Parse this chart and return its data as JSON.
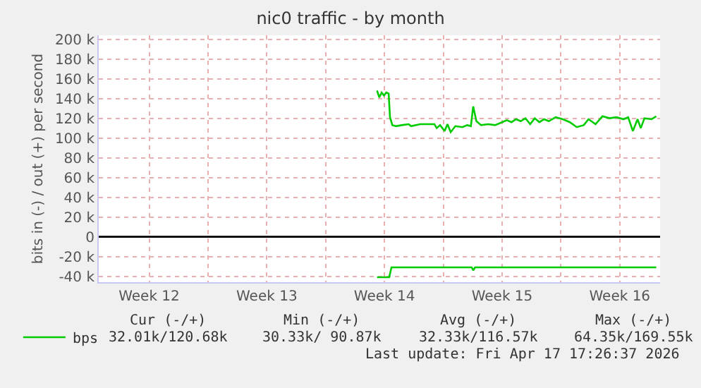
{
  "chart_data": {
    "type": "line",
    "title": "nic0 traffic - by month",
    "ylabel": "bits in (-) / out (+) per second",
    "xlim": [
      "2026-03-15T12:00",
      "2026-04-17T21:36"
    ],
    "ylim": [
      -46000,
      204000
    ],
    "xticks": [
      {
        "value": "2026-03-18T12:00",
        "label": "Week 12"
      },
      {
        "value": "2026-03-22",
        "label": null
      },
      {
        "value": "2026-03-25T12:00",
        "label": "Week 13"
      },
      {
        "value": "2026-03-29",
        "label": null
      },
      {
        "value": "2026-04-01T12:00",
        "label": "Week 14"
      },
      {
        "value": "2026-04-05",
        "label": null
      },
      {
        "value": "2026-04-08T12:00",
        "label": "Week 15"
      },
      {
        "value": "2026-04-12",
        "label": null
      },
      {
        "value": "2026-04-15T12:00",
        "label": "Week 16"
      }
    ],
    "yticks": [
      {
        "value": -40000,
        "label": "-40 k"
      },
      {
        "value": -20000,
        "label": "-20 k"
      },
      0,
      {
        "value": 20000,
        "label": "20 k"
      },
      {
        "value": 40000,
        "label": "40 k"
      },
      {
        "value": 60000,
        "label": "60 k"
      },
      {
        "value": 80000,
        "label": "80 k"
      },
      {
        "value": 100000,
        "label": "100 k"
      },
      {
        "value": 120000,
        "label": "120 k"
      },
      {
        "value": 140000,
        "label": "140 k"
      },
      {
        "value": 160000,
        "label": "160 k"
      },
      {
        "value": 180000,
        "label": "180 k"
      },
      {
        "value": 200000,
        "label": "200 k"
      }
    ],
    "grid": true,
    "legend": "bottom left",
    "marker": "none",
    "line_style": "solid",
    "ref_lines": [
      {
        "axis": "y",
        "value": 0,
        "label": null,
        "color": "#000000"
      }
    ],
    "series": [
      {
        "name": "bps",
        "color": "#00cc00",
        "x": [
          "2026-04-01T01:24",
          "2026-04-01T04:36",
          "2026-04-01T07:55",
          "2026-04-01T11:17",
          "2026-04-01T14:38",
          "2026-04-01T18:00",
          "2026-04-01T19:55",
          "2026-04-01T23:17",
          "2026-04-02T04:34",
          "2026-04-02T12:43",
          "2026-04-02T22:34",
          "2026-04-03T01:55",
          "2026-04-03T15:22",
          "2026-04-04T11:17",
          "2026-04-04T14:38",
          "2026-04-04T19:26",
          "2026-04-05T01:55",
          "2026-04-05T06:00",
          "2026-04-05T10:34",
          "2026-04-05T17:17",
          "2026-04-06T03:22",
          "2026-04-06T10:05",
          "2026-04-06T15:22",
          "2026-04-06T18:43",
          "2026-04-06T23:17",
          "2026-04-07T06:00",
          "2026-04-07T16:05",
          "2026-04-08T01:55",
          "2026-04-08T12:00",
          "2026-04-08T18:43",
          "2026-04-09T01:26",
          "2026-04-09T07:55",
          "2026-04-09T14:38",
          "2026-04-09T21:22",
          "2026-04-10T04:05",
          "2026-04-10T10:34",
          "2026-04-10T17:17",
          "2026-04-11T00:00",
          "2026-04-11T06:43",
          "2026-04-11T16:34",
          "2026-04-12T02:38",
          "2026-04-12T12:43",
          "2026-04-12T22:34",
          "2026-04-13T08:38",
          "2026-04-13T15:22",
          "2026-04-14T01:26",
          "2026-04-14T11:17",
          "2026-04-14T21:22",
          "2026-04-15T07:26",
          "2026-04-15T17:17",
          "2026-04-16T00:00",
          "2026-04-16T06:43",
          "2026-04-16T13:26",
          "2026-04-16T18:00",
          "2026-04-16T23:17",
          "2026-04-17T09:22",
          "2026-04-17T16:05"
        ],
        "values": [
          148000,
          141000,
          146000,
          143000,
          146000,
          145000,
          121000,
          113000,
          112000,
          113000,
          114000,
          112000,
          114000,
          114000,
          110000,
          113000,
          107000,
          114000,
          106000,
          112000,
          111000,
          113000,
          112000,
          132000,
          117000,
          113000,
          114000,
          113000,
          116000,
          118000,
          116000,
          119000,
          117000,
          120000,
          114000,
          120000,
          116000,
          119000,
          117000,
          121000,
          119000,
          116000,
          111000,
          113000,
          119000,
          114000,
          122000,
          120000,
          121000,
          119000,
          121000,
          107000,
          119000,
          110000,
          120000,
          119000,
          122000
        ]
      },
      {
        "color": "#00cc00",
        "x": [
          "2026-04-01T01:24",
          "2026-04-01T18:43",
          "2026-04-01T22:05",
          "2026-04-06T16:34",
          "2026-04-06T18:43",
          "2026-04-06T21:22",
          "2026-04-17T16:05"
        ],
        "values": [
          -41000,
          -41000,
          -31000,
          -31000,
          -34000,
          -31000,
          -31000
        ]
      }
    ],
    "annotations": [
      "Cur (-/+)",
      "Min (-/+)",
      "Avg (-/+)",
      "Max (-/+)",
      "32.01k/120.68k",
      "30.33k/ 90.87k",
      "32.33k/116.57k",
      "64.35k/169.55k",
      "Last update: Fri Apr 17 17:26:37 2026"
    ]
  }
}
